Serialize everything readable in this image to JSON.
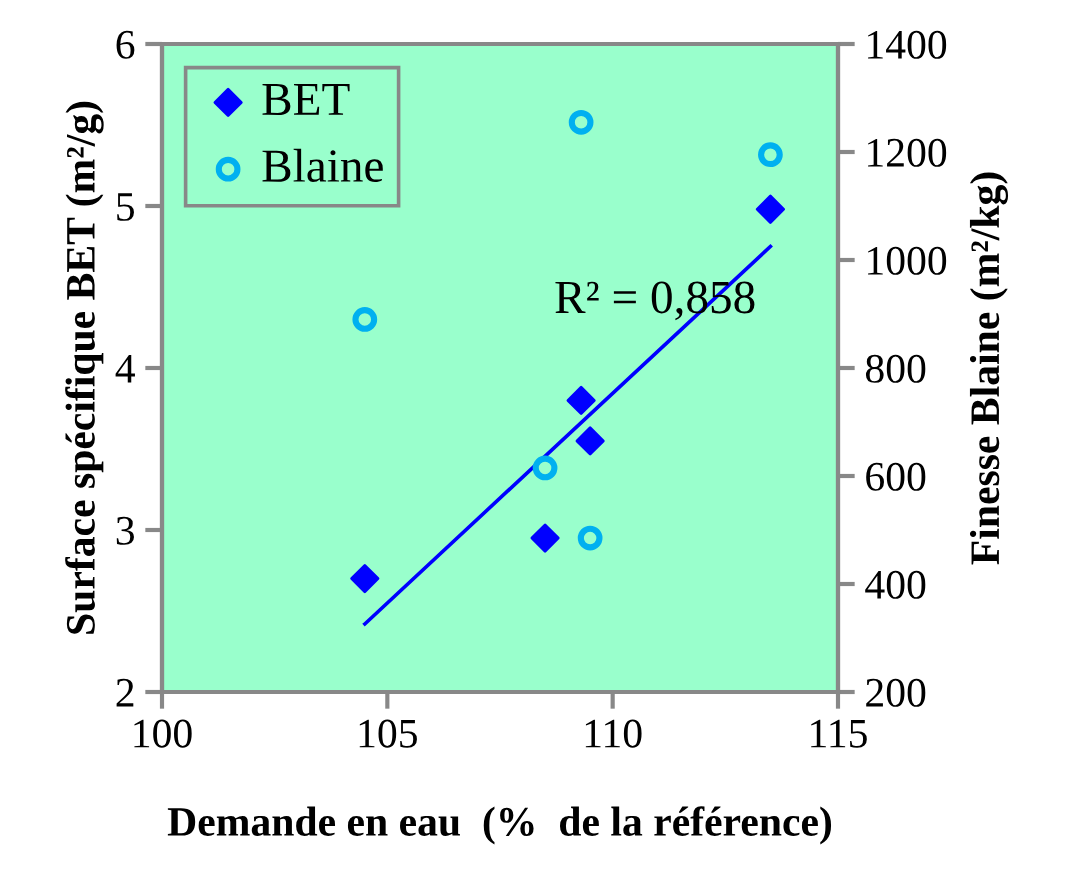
{
  "chart_data": {
    "type": "scatter",
    "xlabel": "Demande en eau  (%  de la référence)",
    "ylabel": "Surface spécifique BET (m²/g)",
    "y2label": "Finesse Blaine (m²/kg)",
    "xlim": [
      100,
      115
    ],
    "xticks": [
      100,
      105,
      110,
      115
    ],
    "ylim": [
      2,
      6
    ],
    "yticks": [
      2,
      3,
      4,
      5,
      6
    ],
    "y2lim": [
      200,
      1400
    ],
    "y2ticks": [
      200,
      400,
      600,
      800,
      1000,
      1200,
      1400
    ],
    "series": [
      {
        "name": "BET",
        "color": "#0000ff",
        "marker": "diamond",
        "x": [
          104.5,
          108.5,
          109.3,
          109.5,
          113.5
        ],
        "values": [
          2.7,
          2.95,
          3.8,
          3.55,
          4.98
        ]
      },
      {
        "name": "Blaine",
        "color": "#00b0f0",
        "marker": "circle",
        "axis": "y2",
        "x": [
          104.5,
          108.5,
          109.3,
          109.5,
          113.5
        ],
        "values": [
          890,
          615,
          1255,
          485,
          1195
        ]
      },
      {
        "type": "line",
        "color": "#0000ff",
        "x": [
          104.5,
          113.5
        ],
        "values": [
          2.42,
          4.75
        ]
      }
    ],
    "annotations": [
      "R² = 0,858"
    ],
    "legend": "top left",
    "grid": false
  }
}
